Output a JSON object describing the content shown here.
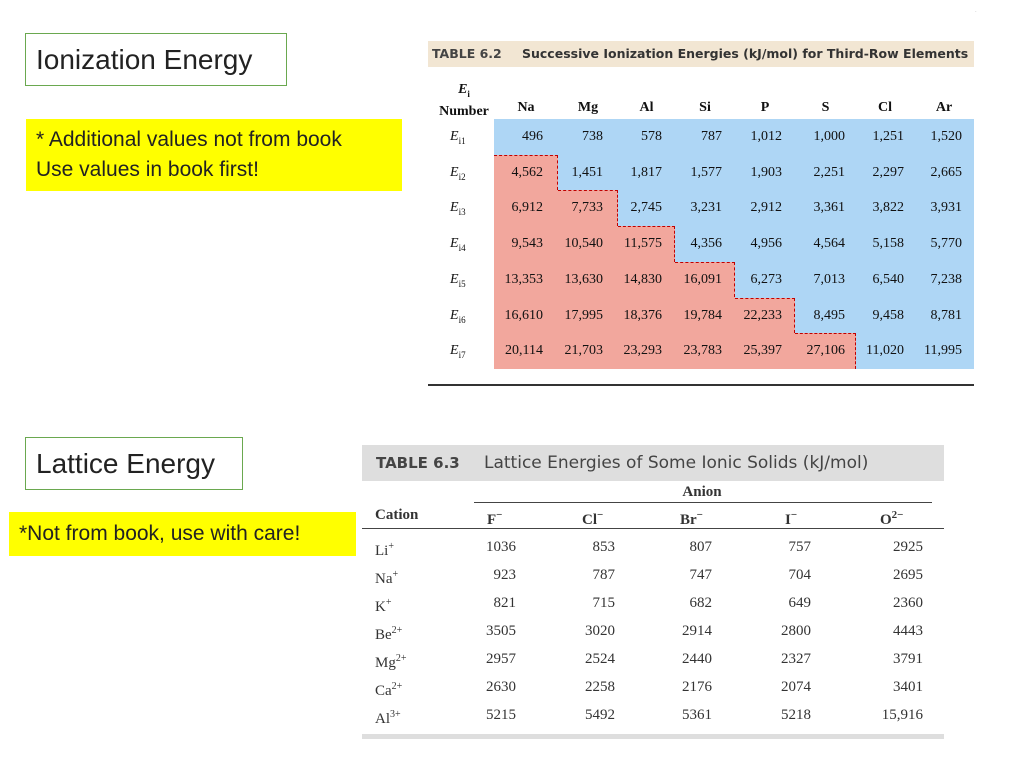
{
  "ionization_label": "Ionization Energy",
  "note1": {
    "line1": "* Additional values not from book",
    "line2": "Use values in book first!"
  },
  "lattice_label": "Lattice Energy",
  "note2": "*Not from book, use with care!",
  "table62": {
    "number": "TABLE 6.2",
    "title": "Successive Ionization Energies (kJ/mol) for Third-Row Elements",
    "header_ei": "E",
    "header_ei_sub": "i",
    "header_number": "Number",
    "columns": [
      "Na",
      "Mg",
      "Al",
      "Si",
      "P",
      "S",
      "Cl",
      "Ar"
    ],
    "row_sym": "E",
    "row_subs": [
      "i1",
      "i2",
      "i3",
      "i4",
      "i5",
      "i6",
      "i7"
    ],
    "rows": [
      [
        "496",
        "738",
        "578",
        "787",
        "1,012",
        "1,000",
        "1,251",
        "1,520"
      ],
      [
        "4,562",
        "1,451",
        "1,817",
        "1,577",
        "1,903",
        "2,251",
        "2,297",
        "2,665"
      ],
      [
        "6,912",
        "7,733",
        "2,745",
        "3,231",
        "2,912",
        "3,361",
        "3,822",
        "3,931"
      ],
      [
        "9,543",
        "10,540",
        "11,575",
        "4,356",
        "4,956",
        "4,564",
        "5,158",
        "5,770"
      ],
      [
        "13,353",
        "13,630",
        "14,830",
        "16,091",
        "6,273",
        "7,013",
        "6,540",
        "7,238"
      ],
      [
        "16,610",
        "17,995",
        "18,376",
        "19,784",
        "22,233",
        "8,495",
        "9,458",
        "8,781"
      ],
      [
        "20,114",
        "21,703",
        "23,293",
        "23,783",
        "25,397",
        "27,106",
        "11,020",
        "11,995"
      ]
    ],
    "valence_row_count_per_column": [
      1,
      2,
      3,
      4,
      5,
      6,
      7,
      8
    ],
    "colors": {
      "valence": "#aed6f5",
      "core": "#f2a79d",
      "divider": "#c00000",
      "caption_bg": "#f2e6d3"
    }
  },
  "table63": {
    "number": "TABLE 6.3",
    "title": "Lattice Energies of Some Ionic Solids (kJ/mol)",
    "anion_label": "Anion",
    "cation_label": "Cation",
    "anions": [
      {
        "base": "F",
        "charge": "−"
      },
      {
        "base": "Cl",
        "charge": "−"
      },
      {
        "base": "Br",
        "charge": "−"
      },
      {
        "base": "I",
        "charge": "−"
      },
      {
        "base": "O",
        "charge": "2−"
      }
    ],
    "cations": [
      {
        "base": "Li",
        "charge": "+"
      },
      {
        "base": "Na",
        "charge": "+"
      },
      {
        "base": "K",
        "charge": "+"
      },
      {
        "base": "Be",
        "charge": "2+"
      },
      {
        "base": "Mg",
        "charge": "2+"
      },
      {
        "base": "Ca",
        "charge": "2+"
      },
      {
        "base": "Al",
        "charge": "3+"
      }
    ],
    "rows": [
      [
        "1036",
        "853",
        "807",
        "757",
        "2925"
      ],
      [
        "923",
        "787",
        "747",
        "704",
        "2695"
      ],
      [
        "821",
        "715",
        "682",
        "649",
        "2360"
      ],
      [
        "3505",
        "3020",
        "2914",
        "2800",
        "4443"
      ],
      [
        "2957",
        "2524",
        "2440",
        "2327",
        "3791"
      ],
      [
        "2630",
        "2258",
        "2176",
        "2074",
        "3401"
      ],
      [
        "5215",
        "5492",
        "5361",
        "5218",
        "15,916"
      ]
    ],
    "colors": {
      "caption_bg": "#dedede"
    }
  },
  "corner_mark": "."
}
